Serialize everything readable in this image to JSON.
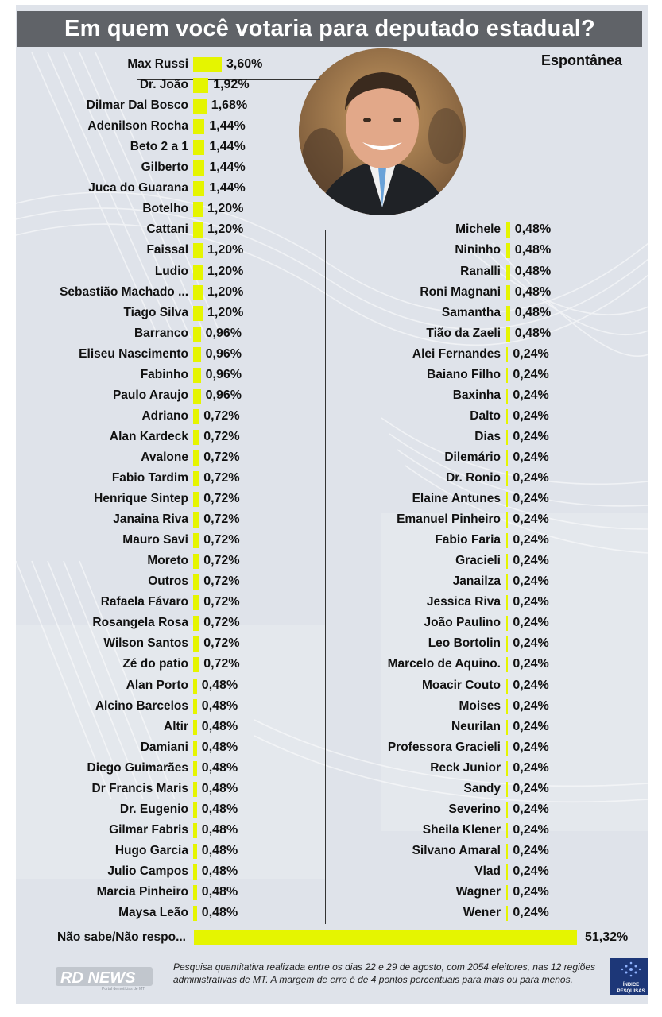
{
  "header": {
    "title": "Em quem você votaria para deputado estadual?",
    "subtitle": "Espontânea"
  },
  "footer": {
    "note": "Pesquisa quantitativa realizada entre os dias 22 e 29 de agosto, com 2054 eleitores, nas 12 regiões administrativas de MT. A margem de erro é de 4 pontos percentuais para mais ou para menos.",
    "rd_logo_text": "RD NEWS",
    "rd_logo_tagline": "Portal de notícias de MT",
    "indice_logo_line1": "ÍNDICE",
    "indice_logo_line2": "PESQUISAS"
  },
  "colors": {
    "bar": "#e5f500",
    "title_bg": "#606368",
    "card_bg": "#dfe3ea"
  },
  "chart_data": {
    "type": "bar",
    "title": "Em quem você votaria para deputado estadual?",
    "subtitle": "Espontânea",
    "unit": "%",
    "orientation": "horizontal",
    "left_column": [
      {
        "name": "Max Russi",
        "value": 3.6,
        "label": "3,60%"
      },
      {
        "name": "Dr. João",
        "value": 1.92,
        "label": "1,92%"
      },
      {
        "name": "Dilmar Dal Bosco",
        "value": 1.68,
        "label": "1,68%"
      },
      {
        "name": "Adenilson Rocha",
        "value": 1.44,
        "label": "1,44%"
      },
      {
        "name": "Beto 2 a 1",
        "value": 1.44,
        "label": "1,44%"
      },
      {
        "name": "Gilberto",
        "value": 1.44,
        "label": "1,44%"
      },
      {
        "name": "Juca do Guarana",
        "value": 1.44,
        "label": "1,44%"
      },
      {
        "name": "Botelho",
        "value": 1.2,
        "label": "1,20%"
      },
      {
        "name": "Cattani",
        "value": 1.2,
        "label": "1,20%"
      },
      {
        "name": "Faissal",
        "value": 1.2,
        "label": "1,20%"
      },
      {
        "name": "Ludio",
        "value": 1.2,
        "label": "1,20%"
      },
      {
        "name": "Sebastião Machado ...",
        "value": 1.2,
        "label": "1,20%"
      },
      {
        "name": "Tiago Silva",
        "value": 1.2,
        "label": "1,20%"
      },
      {
        "name": "Barranco",
        "value": 0.96,
        "label": "0,96%"
      },
      {
        "name": "Eliseu Nascimento",
        "value": 0.96,
        "label": "0,96%"
      },
      {
        "name": "Fabinho",
        "value": 0.96,
        "label": "0,96%"
      },
      {
        "name": "Paulo Araujo",
        "value": 0.96,
        "label": "0,96%"
      },
      {
        "name": "Adriano",
        "value": 0.72,
        "label": "0,72%"
      },
      {
        "name": "Alan Kardeck",
        "value": 0.72,
        "label": "0,72%"
      },
      {
        "name": "Avalone",
        "value": 0.72,
        "label": "0,72%"
      },
      {
        "name": "Fabio Tardim",
        "value": 0.72,
        "label": "0,72%"
      },
      {
        "name": "Henrique Sintep",
        "value": 0.72,
        "label": "0,72%"
      },
      {
        "name": "Janaina Riva",
        "value": 0.72,
        "label": "0,72%"
      },
      {
        "name": "Mauro Savi",
        "value": 0.72,
        "label": "0,72%"
      },
      {
        "name": "Moreto",
        "value": 0.72,
        "label": "0,72%"
      },
      {
        "name": "Outros",
        "value": 0.72,
        "label": "0,72%"
      },
      {
        "name": "Rafaela Fávaro",
        "value": 0.72,
        "label": "0,72%"
      },
      {
        "name": "Rosangela Rosa",
        "value": 0.72,
        "label": "0,72%"
      },
      {
        "name": "Wilson Santos",
        "value": 0.72,
        "label": "0,72%"
      },
      {
        "name": "Zé do patio",
        "value": 0.72,
        "label": "0,72%"
      },
      {
        "name": "Alan Porto",
        "value": 0.48,
        "label": "0,48%"
      },
      {
        "name": "Alcino Barcelos",
        "value": 0.48,
        "label": "0,48%"
      },
      {
        "name": "Altir",
        "value": 0.48,
        "label": "0,48%"
      },
      {
        "name": "Damiani",
        "value": 0.48,
        "label": "0,48%"
      },
      {
        "name": "Diego Guimarães",
        "value": 0.48,
        "label": "0,48%"
      },
      {
        "name": "Dr Francis Maris",
        "value": 0.48,
        "label": "0,48%"
      },
      {
        "name": "Dr. Eugenio",
        "value": 0.48,
        "label": "0,48%"
      },
      {
        "name": "Gilmar Fabris",
        "value": 0.48,
        "label": "0,48%"
      },
      {
        "name": "Hugo Garcia",
        "value": 0.48,
        "label": "0,48%"
      },
      {
        "name": "Julio Campos",
        "value": 0.48,
        "label": "0,48%"
      },
      {
        "name": "Marcia Pinheiro",
        "value": 0.48,
        "label": "0,48%"
      },
      {
        "name": "Maysa Leão",
        "value": 0.48,
        "label": "0,48%"
      }
    ],
    "right_column": [
      {
        "name": "Michele",
        "value": 0.48,
        "label": "0,48%"
      },
      {
        "name": "Nininho",
        "value": 0.48,
        "label": "0,48%"
      },
      {
        "name": "Ranalli",
        "value": 0.48,
        "label": "0,48%"
      },
      {
        "name": "Roni Magnani",
        "value": 0.48,
        "label": "0,48%"
      },
      {
        "name": "Samantha",
        "value": 0.48,
        "label": "0,48%"
      },
      {
        "name": "Tião da Zaeli",
        "value": 0.48,
        "label": "0,48%"
      },
      {
        "name": "Alei Fernandes",
        "value": 0.24,
        "label": "0,24%"
      },
      {
        "name": "Baiano Filho",
        "value": 0.24,
        "label": "0,24%"
      },
      {
        "name": "Baxinha",
        "value": 0.24,
        "label": "0,24%"
      },
      {
        "name": "Dalto",
        "value": 0.24,
        "label": "0,24%"
      },
      {
        "name": "Dias",
        "value": 0.24,
        "label": "0,24%"
      },
      {
        "name": "Dilemário",
        "value": 0.24,
        "label": "0,24%"
      },
      {
        "name": "Dr. Ronio",
        "value": 0.24,
        "label": "0,24%"
      },
      {
        "name": "Elaine Antunes",
        "value": 0.24,
        "label": "0,24%"
      },
      {
        "name": "Emanuel Pinheiro",
        "value": 0.24,
        "label": "0,24%"
      },
      {
        "name": "Fabio Faria",
        "value": 0.24,
        "label": "0,24%"
      },
      {
        "name": "Gracieli",
        "value": 0.24,
        "label": "0,24%"
      },
      {
        "name": "Janailza",
        "value": 0.24,
        "label": "0,24%"
      },
      {
        "name": "Jessica Riva",
        "value": 0.24,
        "label": "0,24%"
      },
      {
        "name": "João Paulino",
        "value": 0.24,
        "label": "0,24%"
      },
      {
        "name": "Leo Bortolin",
        "value": 0.24,
        "label": "0,24%"
      },
      {
        "name": "Marcelo de Aquino.",
        "value": 0.24,
        "label": "0,24%"
      },
      {
        "name": "Moacir Couto",
        "value": 0.24,
        "label": "0,24%"
      },
      {
        "name": "Moises",
        "value": 0.24,
        "label": "0,24%"
      },
      {
        "name": "Neurilan",
        "value": 0.24,
        "label": "0,24%"
      },
      {
        "name": "Professora Gracieli",
        "value": 0.24,
        "label": "0,24%"
      },
      {
        "name": "Reck Junior",
        "value": 0.24,
        "label": "0,24%"
      },
      {
        "name": "Sandy",
        "value": 0.24,
        "label": "0,24%"
      },
      {
        "name": "Severino",
        "value": 0.24,
        "label": "0,24%"
      },
      {
        "name": "Sheila Klener",
        "value": 0.24,
        "label": "0,24%"
      },
      {
        "name": "Silvano Amaral",
        "value": 0.24,
        "label": "0,24%"
      },
      {
        "name": "Vlad",
        "value": 0.24,
        "label": "0,24%"
      },
      {
        "name": "Wagner",
        "value": 0.24,
        "label": "0,24%"
      },
      {
        "name": "Wener",
        "value": 0.24,
        "label": "0,24%"
      }
    ],
    "bottom": {
      "name": "Não sabe/Não respo...",
      "value": 51.32,
      "label": "51,32%"
    }
  }
}
